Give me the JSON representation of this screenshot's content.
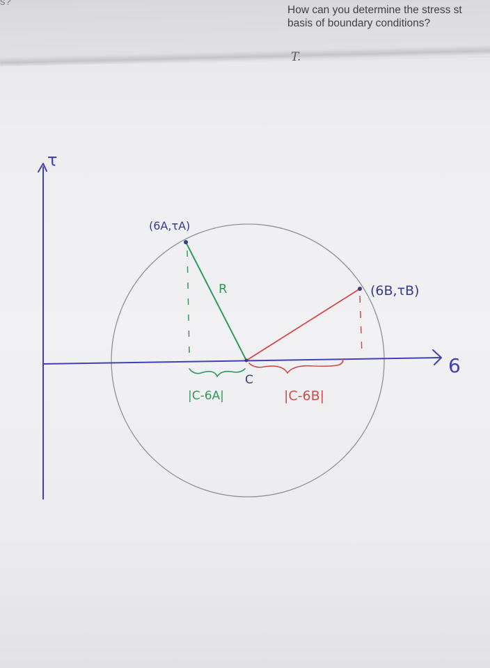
{
  "photo": {
    "subject": "handwritten Mohr's circle sketch on paper",
    "background_color": "#eeeef0"
  },
  "printed_text": {
    "corner_fragment": "s?",
    "question_line_1": "How can you determine the stress st",
    "question_line_2": "basis of boundary conditions?",
    "tau_mark": "T."
  },
  "sketch": {
    "colors": {
      "axes": "#4040b0",
      "circle": "#8f8f96",
      "point_a": "#2f9a5a",
      "point_b": "#d24a4a",
      "point_dot": "#3a3a8a"
    },
    "tau_axis_label": "τ",
    "sigma_axis_label": "6",
    "center_label": "C",
    "radius_label": "R",
    "point_a_label": "(6A,τA)",
    "point_b_label": "(6B,τB)",
    "dist_a_label": "|C-6A|",
    "dist_b_label": "|C-6B|"
  }
}
